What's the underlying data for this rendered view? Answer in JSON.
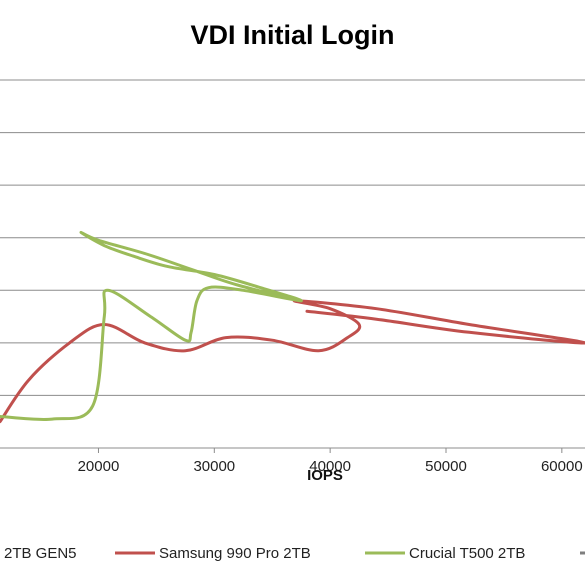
{
  "chart_data": {
    "type": "line",
    "title": "VDI Initial Login",
    "xlabel": "IOPS",
    "ylabel": "",
    "x_ticks": [
      20000,
      30000,
      40000,
      50000,
      60000
    ],
    "x_tick_labels": [
      "20000",
      "30000",
      "40000",
      "50000",
      "60000"
    ],
    "xlim": [
      11500,
      62000
    ],
    "ylim": [
      0,
      7
    ],
    "grid": true,
    "legend_position": "bottom",
    "series": [
      {
        "name": "2TB GEN5",
        "color": "#4a7ebb",
        "points": []
      },
      {
        "name": "Samsung 990 Pro 2TB",
        "color": "#c0504d",
        "points": [
          [
            11500,
            0.5
          ],
          [
            14000,
            1.3
          ],
          [
            17500,
            2.0
          ],
          [
            20500,
            2.35
          ],
          [
            24000,
            2.0
          ],
          [
            27500,
            1.85
          ],
          [
            31000,
            2.1
          ],
          [
            35000,
            2.05
          ],
          [
            39000,
            1.85
          ],
          [
            41500,
            2.1
          ],
          [
            42500,
            2.35
          ],
          [
            40000,
            2.65
          ],
          [
            37000,
            2.8
          ],
          [
            44000,
            2.65
          ],
          [
            52000,
            2.35
          ],
          [
            62000,
            2.0
          ],
          [
            52000,
            2.2
          ],
          [
            44000,
            2.45
          ],
          [
            38000,
            2.6
          ]
        ]
      },
      {
        "name": "Crucial T500 2TB",
        "color": "#9bbb59",
        "points": [
          [
            11500,
            0.6
          ],
          [
            16000,
            0.55
          ],
          [
            19500,
            0.8
          ],
          [
            20500,
            2.5
          ],
          [
            20800,
            3.0
          ],
          [
            24500,
            2.5
          ],
          [
            27500,
            2.05
          ],
          [
            28000,
            2.2
          ],
          [
            28500,
            2.8
          ],
          [
            29500,
            3.05
          ],
          [
            32500,
            3.0
          ],
          [
            37500,
            2.8
          ],
          [
            34000,
            3.05
          ],
          [
            30000,
            3.3
          ],
          [
            26000,
            3.45
          ],
          [
            23000,
            3.65
          ],
          [
            20500,
            3.85
          ],
          [
            18500,
            4.1
          ],
          [
            20000,
            3.95
          ],
          [
            24000,
            3.7
          ],
          [
            28000,
            3.4
          ],
          [
            32000,
            3.1
          ],
          [
            37500,
            2.8
          ]
        ]
      },
      {
        "name": "",
        "color": "#7f7f7f",
        "points": []
      }
    ]
  }
}
